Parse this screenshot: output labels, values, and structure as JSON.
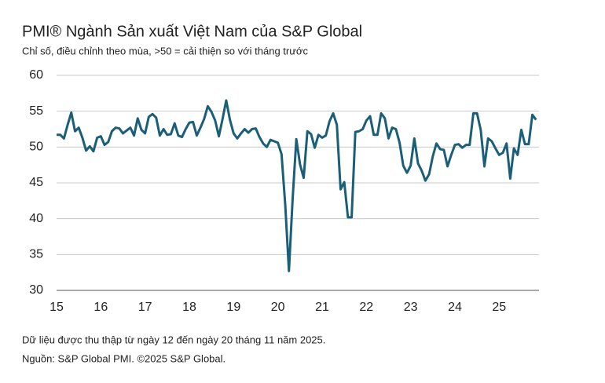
{
  "chart_data": {
    "type": "line",
    "title": "PMI® Ngành Sản xuất Việt Nam của S&P Global",
    "subtitle": "Chỉ số, điều chỉnh theo mùa, >50 = cải thiện so với tháng trước",
    "notes": [
      "Dữ liệu được thu thập từ ngày 12 đến ngày 20 tháng 11 năm 2025.",
      "Nguồn: S&P Global PMI. ©2025 S&P Global."
    ],
    "x": [
      15,
      15.083,
      15.167,
      15.25,
      15.333,
      15.417,
      15.5,
      15.583,
      15.667,
      15.75,
      15.833,
      15.917,
      16,
      16.083,
      16.167,
      16.25,
      16.333,
      16.417,
      16.5,
      16.583,
      16.667,
      16.75,
      16.833,
      16.917,
      17,
      17.083,
      17.167,
      17.25,
      17.333,
      17.417,
      17.5,
      17.583,
      17.667,
      17.75,
      17.833,
      17.917,
      18,
      18.083,
      18.167,
      18.25,
      18.333,
      18.417,
      18.5,
      18.583,
      18.667,
      18.75,
      18.833,
      18.917,
      19,
      19.083,
      19.167,
      19.25,
      19.333,
      19.417,
      19.5,
      19.583,
      19.667,
      19.75,
      19.833,
      19.917,
      20,
      20.083,
      20.167,
      20.25,
      20.333,
      20.417,
      20.5,
      20.583,
      20.667,
      20.75,
      20.833,
      20.917,
      21,
      21.083,
      21.167,
      21.25,
      21.333,
      21.417,
      21.5,
      21.583,
      21.667,
      21.75,
      21.833,
      21.917,
      22,
      22.083,
      22.167,
      22.25,
      22.333,
      22.417,
      22.5,
      22.583,
      22.667,
      22.75,
      22.833,
      22.917,
      23,
      23.083,
      23.167,
      23.25,
      23.333,
      23.417,
      23.5,
      23.583,
      23.667,
      23.75,
      23.833,
      23.917,
      24,
      24.083,
      24.167,
      24.25,
      24.333,
      24.417,
      24.5,
      24.583,
      24.667,
      24.75,
      24.833,
      24.917,
      25,
      25.083,
      25.167,
      25.25,
      25.333,
      25.417,
      25.5,
      25.583,
      25.667,
      25.75,
      25.833
    ],
    "values": [
      51.7,
      51.7,
      51.2,
      53.1,
      54.8,
      52.2,
      52.7,
      51.3,
      49.5,
      50.1,
      49.4,
      51.3,
      51.5,
      50.3,
      50.7,
      52.2,
      52.7,
      52.6,
      51.9,
      52.3,
      52.7,
      51.6,
      54.0,
      52.4,
      51.9,
      54.2,
      54.6,
      54.1,
      51.6,
      52.5,
      51.7,
      51.8,
      53.3,
      51.6,
      51.4,
      52.5,
      53.4,
      53.5,
      51.6,
      52.7,
      53.9,
      55.7,
      54.9,
      53.7,
      51.5,
      53.9,
      56.5,
      53.8,
      51.9,
      51.2,
      51.9,
      52.5,
      52.0,
      52.5,
      52.6,
      51.4,
      50.5,
      50.0,
      51.0,
      50.8,
      50.6,
      49.0,
      41.9,
      32.7,
      42.7,
      51.1,
      47.6,
      45.7,
      52.2,
      51.8,
      49.9,
      51.7,
      51.3,
      51.6,
      53.6,
      54.7,
      53.1,
      44.1,
      45.1,
      40.2,
      40.2,
      52.1,
      52.2,
      52.5,
      53.7,
      54.3,
      51.7,
      51.7,
      54.7,
      54.0,
      51.2,
      52.7,
      52.5,
      50.6,
      47.4,
      46.4,
      47.4,
      51.2,
      47.7,
      46.7,
      45.3,
      46.2,
      48.7,
      50.5,
      49.7,
      49.6,
      47.3,
      48.9,
      50.3,
      50.4,
      49.9,
      50.3,
      50.3,
      54.7,
      54.7,
      52.4,
      47.3,
      51.2,
      50.8,
      49.8,
      48.9,
      49.2,
      50.5,
      45.6,
      49.8,
      48.9,
      52.4,
      50.4,
      50.4,
      54.5,
      53.8
    ],
    "color": "#1b5e78",
    "xlim": [
      15,
      25.9
    ],
    "xticks": [
      15,
      16,
      17,
      18,
      19,
      20,
      21,
      22,
      23,
      24,
      25
    ],
    "ylim": [
      30,
      60
    ],
    "yticks": [
      30,
      35,
      40,
      45,
      50,
      55,
      60
    ],
    "grid": true
  }
}
